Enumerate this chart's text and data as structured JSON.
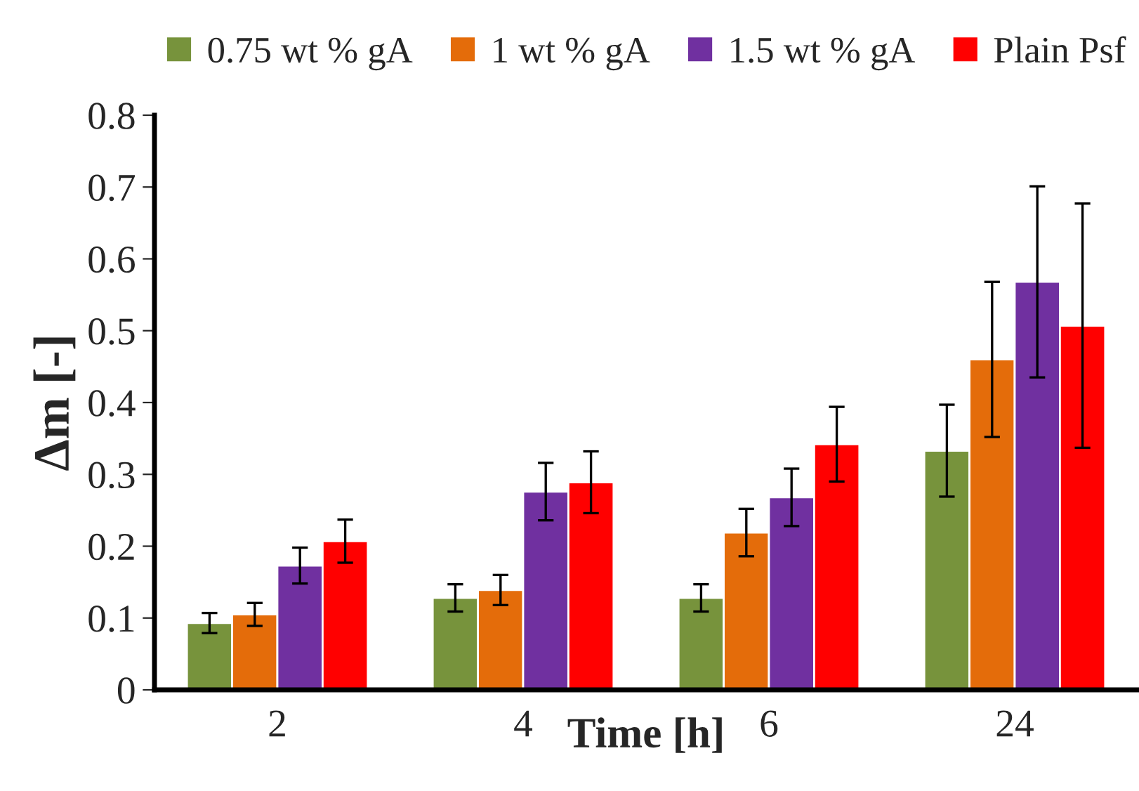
{
  "chart_data": {
    "type": "bar",
    "xlabel": "Time [h]",
    "ylabel": "Δm [-]",
    "categories": [
      "2",
      "4",
      "6",
      "24"
    ],
    "series": [
      {
        "name": "0.75 wt % gA",
        "color": "#77933c",
        "values": [
          0.093,
          0.128,
          0.128,
          0.333
        ],
        "errors": [
          0.014,
          0.019,
          0.019,
          0.064
        ]
      },
      {
        "name": "1 wt % gA",
        "color": "#e46c0a",
        "values": [
          0.105,
          0.139,
          0.219,
          0.46
        ],
        "errors": [
          0.016,
          0.021,
          0.033,
          0.108
        ]
      },
      {
        "name": "1.5 wt % gA",
        "color": "#7030a0",
        "values": [
          0.173,
          0.276,
          0.268,
          0.568
        ],
        "errors": [
          0.025,
          0.04,
          0.04,
          0.133
        ]
      },
      {
        "name": "Plain Psf",
        "color": "#ff0000",
        "values": [
          0.207,
          0.289,
          0.342,
          0.507
        ],
        "errors": [
          0.03,
          0.043,
          0.052,
          0.17
        ]
      }
    ],
    "ylim": [
      0,
      0.8
    ],
    "yticks": [
      {
        "value": 0,
        "label": "0"
      },
      0.1,
      0.2,
      0.3,
      0.4,
      0.5,
      0.6,
      0.7,
      0.8
    ],
    "legend": "top",
    "grid": false
  }
}
